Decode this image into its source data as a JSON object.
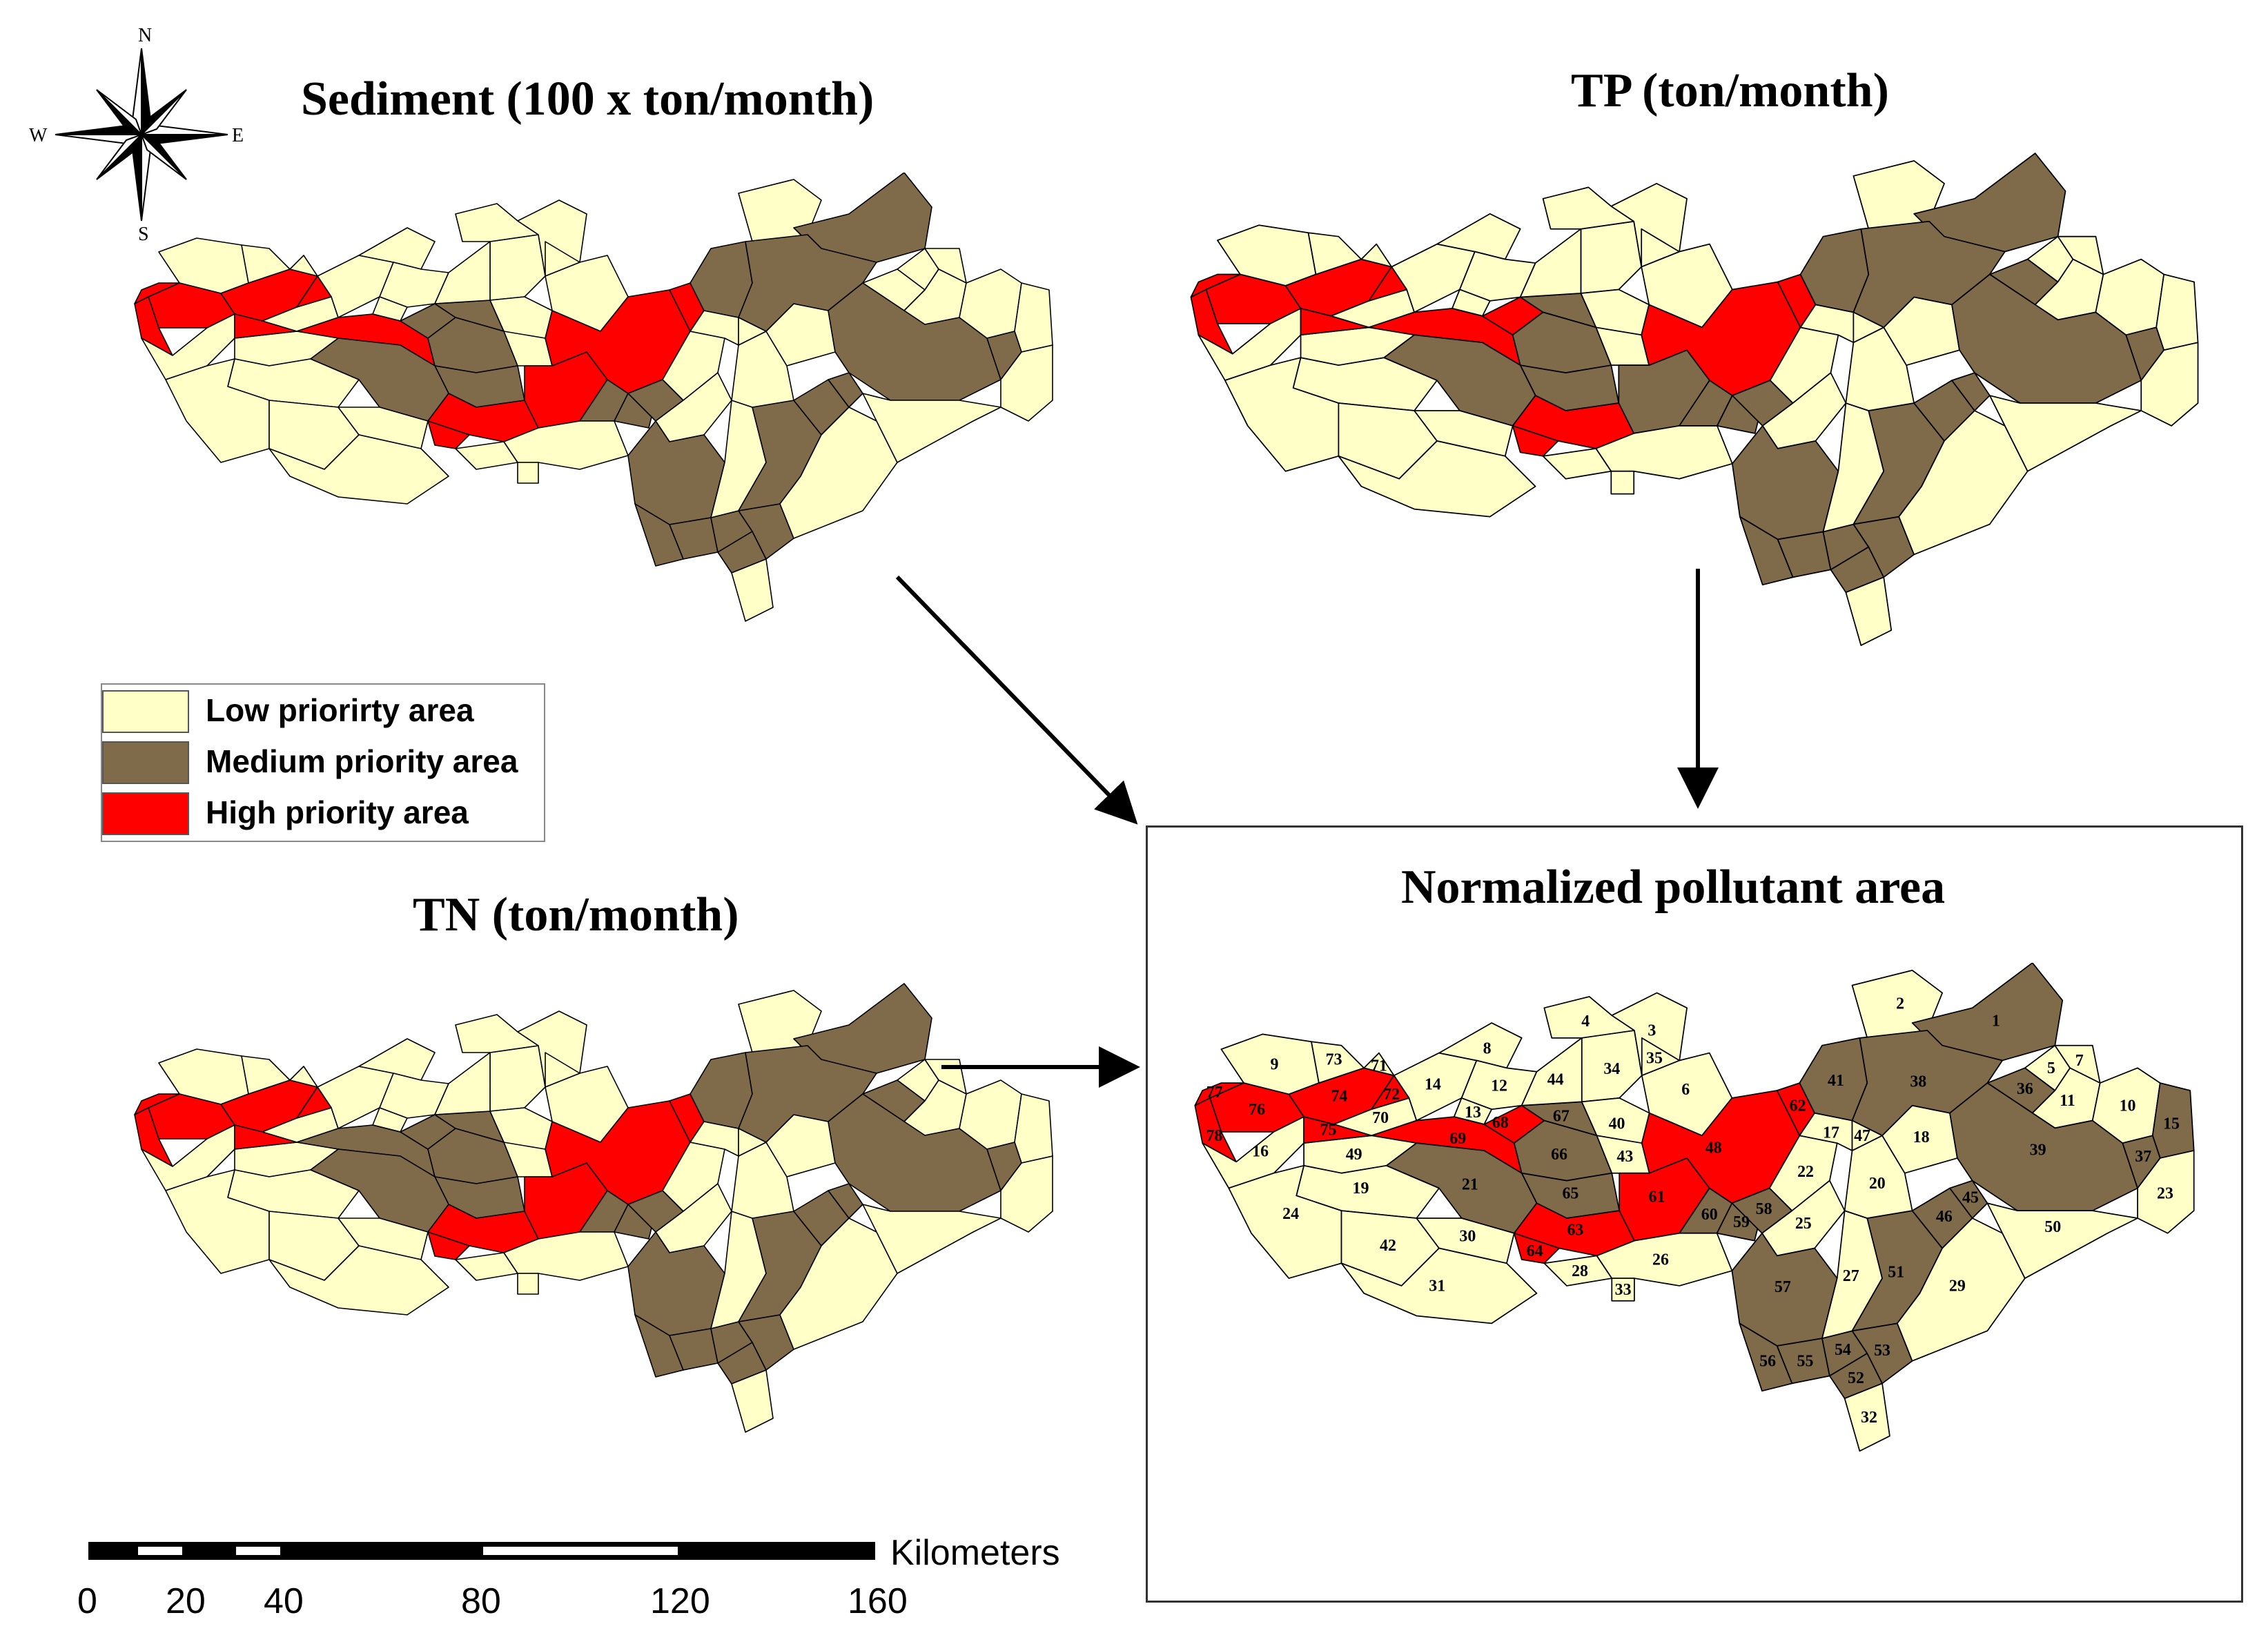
{
  "titles": {
    "sediment": "Sediment (100 x ton/month)",
    "tp": "TP (ton/month)",
    "tn": "TN (ton/month)",
    "result": "Normalized pollutant area"
  },
  "legend": {
    "items": [
      {
        "label": "Low priorirty area",
        "color": "#FFFFC8"
      },
      {
        "label": "Medium priority area",
        "color": "#7F6A4A"
      },
      {
        "label": "High priority area",
        "color": "#FF0000"
      }
    ]
  },
  "compass": {
    "n": "N",
    "s": "S",
    "e": "E",
    "w": "W"
  },
  "scale_bar": {
    "unit": "Kilometers",
    "ticks": [
      "0",
      "20",
      "40",
      "80",
      "120",
      "160"
    ]
  },
  "colors": {
    "low": "#FFFFC8",
    "medium": "#7F6A4A",
    "high": "#FF0000",
    "outline": "#000000"
  },
  "subbasin_ids": [
    "1",
    "2",
    "3",
    "4",
    "5",
    "6",
    "7",
    "8",
    "9",
    "10",
    "11",
    "12",
    "13",
    "14",
    "15",
    "16",
    "17",
    "18",
    "19",
    "20",
    "21",
    "22",
    "23",
    "24",
    "25",
    "26",
    "27",
    "28",
    "29",
    "30",
    "31",
    "32",
    "33",
    "34",
    "35",
    "36",
    "37",
    "38",
    "39",
    "40",
    "41",
    "42",
    "43",
    "44",
    "45",
    "46",
    "47",
    "48",
    "49",
    "50",
    "51",
    "52",
    "53",
    "54",
    "55",
    "56",
    "57",
    "58",
    "59",
    "60",
    "61",
    "62",
    "63",
    "64",
    "65",
    "66",
    "67",
    "68",
    "69",
    "70",
    "71",
    "72",
    "73",
    "74",
    "75",
    "76",
    "77",
    "78"
  ]
}
